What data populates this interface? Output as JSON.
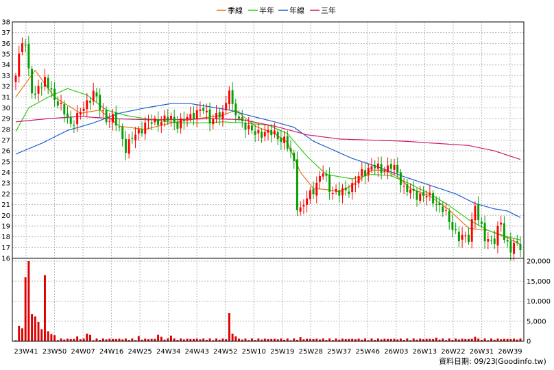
{
  "chart_data": {
    "type": "candlestick",
    "legend": [
      {
        "name": "季線",
        "color": "#e8731a"
      },
      {
        "name": "半年",
        "color": "#2ecc1a"
      },
      {
        "name": "年線",
        "color": "#1a5fd0"
      },
      {
        "name": "三年",
        "color": "#cc1a6a"
      }
    ],
    "legend_position": "top-center",
    "grid": true,
    "up_color": "#ff0000",
    "down_color": "#00a000",
    "price_axis": {
      "min": 16,
      "max": 38,
      "ticks": [
        16,
        17,
        18,
        19,
        20,
        21,
        22,
        23,
        24,
        25,
        26,
        27,
        28,
        29,
        30,
        31,
        32,
        33,
        34,
        35,
        36,
        37,
        38
      ],
      "side": "left"
    },
    "volume_axis": {
      "min": 0,
      "max": 20000,
      "ticks": [
        0,
        5000,
        10000,
        15000,
        20000
      ],
      "tick_labels": [
        "0",
        "5,000",
        "10,000",
        "15,000",
        "20,000"
      ],
      "side": "right"
    },
    "x_labels": [
      "23W41",
      "23W50",
      "24W07",
      "24W16",
      "24W25",
      "24W34",
      "24W43",
      "24W52",
      "25W10",
      "25W19",
      "25W28",
      "25W37",
      "25W46",
      "26W03",
      "26W13",
      "26W22",
      "26W31",
      "26W39"
    ],
    "weeks": 157,
    "anchors": [
      {
        "w": 0,
        "c": 33.0
      },
      {
        "w": 1,
        "c": 35.0
      },
      {
        "w": 2,
        "c": 36.5
      },
      {
        "w": 3,
        "c": 35.5
      },
      {
        "w": 4,
        "c": 33.5
      },
      {
        "w": 5,
        "c": 31.5
      },
      {
        "w": 6,
        "c": 31.0
      },
      {
        "w": 7,
        "c": 32.5
      },
      {
        "w": 8,
        "c": 31.8
      },
      {
        "w": 9,
        "c": 32.5
      },
      {
        "w": 12,
        "c": 31.0
      },
      {
        "w": 14,
        "c": 30.0
      },
      {
        "w": 17,
        "c": 28.5
      },
      {
        "w": 20,
        "c": 29.5
      },
      {
        "w": 22,
        "c": 30.5
      },
      {
        "w": 24,
        "c": 31.5
      },
      {
        "w": 26,
        "c": 30.0
      },
      {
        "w": 28,
        "c": 29.0
      },
      {
        "w": 30,
        "c": 29.0
      },
      {
        "w": 32,
        "c": 28.0
      },
      {
        "w": 34,
        "c": 26.3
      },
      {
        "w": 37,
        "c": 27.5
      },
      {
        "w": 40,
        "c": 28.5
      },
      {
        "w": 44,
        "c": 28.8
      },
      {
        "w": 48,
        "c": 29.0
      },
      {
        "w": 50,
        "c": 28.5
      },
      {
        "w": 52,
        "c": 28.8
      },
      {
        "w": 55,
        "c": 29.5
      },
      {
        "w": 58,
        "c": 29.8
      },
      {
        "w": 60,
        "c": 29.0
      },
      {
        "w": 62,
        "c": 29.2
      },
      {
        "w": 64,
        "c": 29.3
      },
      {
        "w": 66,
        "c": 32.0
      },
      {
        "w": 67,
        "c": 30.0
      },
      {
        "w": 69,
        "c": 28.8
      },
      {
        "w": 71,
        "c": 28.5
      },
      {
        "w": 74,
        "c": 27.5
      },
      {
        "w": 77,
        "c": 27.8
      },
      {
        "w": 80,
        "c": 27.5
      },
      {
        "w": 83,
        "c": 27.0
      },
      {
        "w": 86,
        "c": 25.0
      },
      {
        "w": 87,
        "c": 21.0
      },
      {
        "w": 88,
        "c": 20.5
      },
      {
        "w": 90,
        "c": 21.5
      },
      {
        "w": 93,
        "c": 23.0
      },
      {
        "w": 95,
        "c": 24.0
      },
      {
        "w": 97,
        "c": 22.5
      },
      {
        "w": 100,
        "c": 22.0
      },
      {
        "w": 103,
        "c": 22.5
      },
      {
        "w": 105,
        "c": 23.0
      },
      {
        "w": 107,
        "c": 24.0
      },
      {
        "w": 110,
        "c": 24.5
      },
      {
        "w": 113,
        "c": 24.3
      },
      {
        "w": 116,
        "c": 24.5
      },
      {
        "w": 118,
        "c": 24.0
      },
      {
        "w": 120,
        "c": 22.5
      },
      {
        "w": 123,
        "c": 22.0
      },
      {
        "w": 127,
        "c": 21.8
      },
      {
        "w": 129,
        "c": 21.5
      },
      {
        "w": 132,
        "c": 20.5
      },
      {
        "w": 135,
        "c": 19.0
      },
      {
        "w": 137,
        "c": 17.8
      },
      {
        "w": 140,
        "c": 18.0
      },
      {
        "w": 142,
        "c": 21.0
      },
      {
        "w": 143,
        "c": 19.5
      },
      {
        "w": 145,
        "c": 18.0
      },
      {
        "w": 148,
        "c": 17.5
      },
      {
        "w": 150,
        "c": 19.5
      },
      {
        "w": 151,
        "c": 18.0
      },
      {
        "w": 153,
        "c": 16.8
      },
      {
        "w": 155,
        "c": 17.3
      },
      {
        "w": 156,
        "c": 17.2
      }
    ],
    "volume_spikes": [
      {
        "w": 1,
        "v": 3800
      },
      {
        "w": 2,
        "v": 3200
      },
      {
        "w": 3,
        "v": 16000
      },
      {
        "w": 4,
        "v": 20000
      },
      {
        "w": 5,
        "v": 6800
      },
      {
        "w": 6,
        "v": 6200
      },
      {
        "w": 7,
        "v": 4800
      },
      {
        "w": 8,
        "v": 3000
      },
      {
        "w": 9,
        "v": 16500
      },
      {
        "w": 10,
        "v": 2500
      },
      {
        "w": 11,
        "v": 1800
      },
      {
        "w": 12,
        "v": 1500
      },
      {
        "w": 19,
        "v": 1200
      },
      {
        "w": 22,
        "v": 1900
      },
      {
        "w": 23,
        "v": 1600
      },
      {
        "w": 38,
        "v": 1300
      },
      {
        "w": 44,
        "v": 1600
      },
      {
        "w": 45,
        "v": 1100
      },
      {
        "w": 48,
        "v": 1400
      },
      {
        "w": 66,
        "v": 7000
      },
      {
        "w": 67,
        "v": 1900
      },
      {
        "w": 68,
        "v": 1200
      },
      {
        "w": 88,
        "v": 1000
      },
      {
        "w": 130,
        "v": 900
      },
      {
        "w": 142,
        "v": 1100
      }
    ],
    "ma": {
      "quarter": [
        [
          0,
          31.0
        ],
        [
          6,
          33.5
        ],
        [
          12,
          31.0
        ],
        [
          20,
          29.5
        ],
        [
          26,
          29.8
        ],
        [
          32,
          28.3
        ],
        [
          40,
          28.0
        ],
        [
          48,
          28.6
        ],
        [
          56,
          29.0
        ],
        [
          64,
          29.3
        ],
        [
          68,
          29.8
        ],
        [
          74,
          28.3
        ],
        [
          80,
          27.6
        ],
        [
          84,
          26.8
        ],
        [
          88,
          24.0
        ],
        [
          92,
          22.5
        ],
        [
          96,
          22.4
        ],
        [
          100,
          22.2
        ],
        [
          104,
          22.8
        ],
        [
          110,
          24.2
        ],
        [
          114,
          24.2
        ],
        [
          118,
          23.6
        ],
        [
          122,
          22.5
        ],
        [
          128,
          21.8
        ],
        [
          134,
          20.5
        ],
        [
          140,
          18.8
        ],
        [
          146,
          18.6
        ],
        [
          152,
          17.9
        ],
        [
          156,
          17.3
        ]
      ],
      "half": [
        [
          0,
          27.8
        ],
        [
          4,
          30.0
        ],
        [
          10,
          31.0
        ],
        [
          16,
          31.8
        ],
        [
          22,
          31.2
        ],
        [
          28,
          29.8
        ],
        [
          34,
          29.3
        ],
        [
          42,
          28.9
        ],
        [
          50,
          28.6
        ],
        [
          58,
          28.6
        ],
        [
          64,
          28.7
        ],
        [
          70,
          28.6
        ],
        [
          78,
          28.4
        ],
        [
          84,
          27.6
        ],
        [
          90,
          25.5
        ],
        [
          96,
          23.8
        ],
        [
          104,
          23.4
        ],
        [
          110,
          23.8
        ],
        [
          116,
          23.7
        ],
        [
          122,
          22.9
        ],
        [
          128,
          22.0
        ],
        [
          134,
          20.9
        ],
        [
          140,
          19.6
        ],
        [
          146,
          18.6
        ],
        [
          152,
          18.0
        ],
        [
          156,
          17.7
        ]
      ],
      "year": [
        [
          0,
          25.7
        ],
        [
          8,
          26.7
        ],
        [
          16,
          27.9
        ],
        [
          24,
          28.6
        ],
        [
          32,
          29.5
        ],
        [
          40,
          30.0
        ],
        [
          48,
          30.4
        ],
        [
          54,
          30.4
        ],
        [
          60,
          30.1
        ],
        [
          66,
          29.8
        ],
        [
          72,
          29.3
        ],
        [
          80,
          28.7
        ],
        [
          86,
          28.2
        ],
        [
          92,
          26.9
        ],
        [
          98,
          26.1
        ],
        [
          104,
          25.3
        ],
        [
          112,
          24.5
        ],
        [
          120,
          23.6
        ],
        [
          128,
          22.8
        ],
        [
          136,
          22.0
        ],
        [
          142,
          21.1
        ],
        [
          148,
          20.6
        ],
        [
          152,
          20.4
        ],
        [
          156,
          19.8
        ]
      ],
      "three_year": [
        [
          0,
          28.7
        ],
        [
          10,
          29.0
        ],
        [
          20,
          29.2
        ],
        [
          30,
          29.0
        ],
        [
          40,
          28.9
        ],
        [
          50,
          28.9
        ],
        [
          60,
          29.0
        ],
        [
          70,
          28.9
        ],
        [
          80,
          28.3
        ],
        [
          90,
          27.5
        ],
        [
          100,
          27.1
        ],
        [
          110,
          27.0
        ],
        [
          120,
          26.9
        ],
        [
          130,
          26.7
        ],
        [
          140,
          26.5
        ],
        [
          148,
          26.0
        ],
        [
          156,
          25.2
        ]
      ]
    }
  },
  "footer": {
    "date_label": "資料日期: 09/23",
    "source": "(Goodinfo.tw)"
  }
}
